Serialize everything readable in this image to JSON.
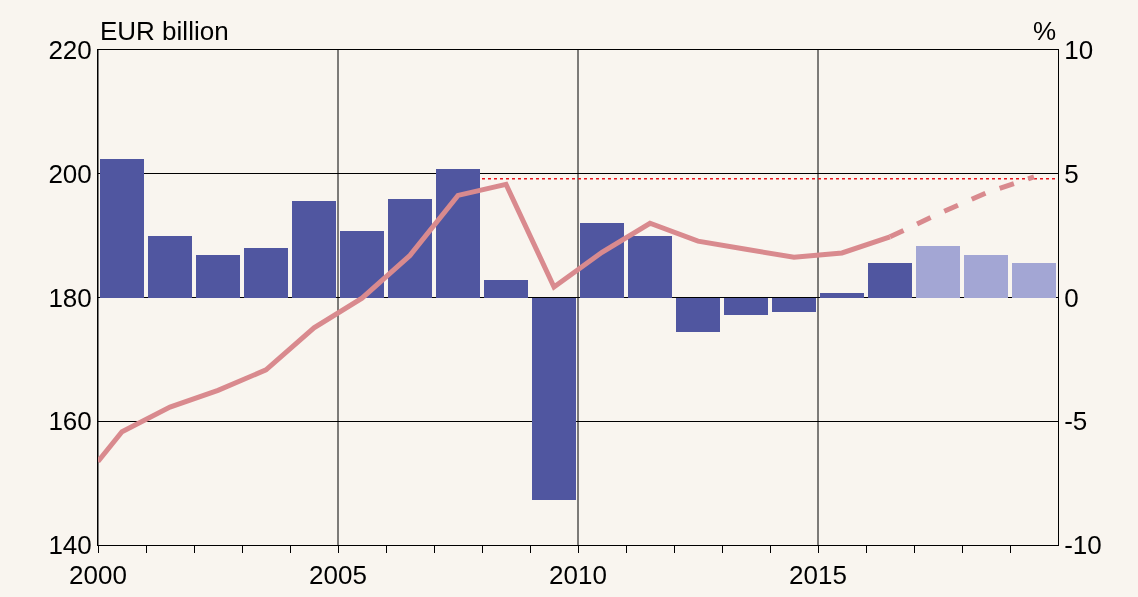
{
  "chart_data": {
    "type": "bar",
    "ylabel": "EUR billion",
    "y2label": "%",
    "xlim": [
      2000,
      2020
    ],
    "xticks": [
      2000,
      {
        "value": 2001,
        "label": null
      },
      {
        "value": 2002,
        "label": null
      },
      {
        "value": 2003,
        "label": null
      },
      {
        "value": 2004,
        "label": null
      },
      2005,
      {
        "value": 2006,
        "label": null
      },
      {
        "value": 2007,
        "label": null
      },
      {
        "value": 2008,
        "label": null
      },
      {
        "value": 2009,
        "label": null
      },
      2010,
      {
        "value": 2011,
        "label": null
      },
      {
        "value": 2012,
        "label": null
      },
      {
        "value": 2013,
        "label": null
      },
      {
        "value": 2014,
        "label": null
      },
      2015,
      {
        "value": 2016,
        "label": null
      },
      {
        "value": 2017,
        "label": null
      },
      {
        "value": 2018,
        "label": null
      },
      {
        "value": 2019,
        "label": null
      }
    ],
    "ylim": [
      140,
      220
    ],
    "yticks": [
      140,
      160,
      180,
      200,
      220
    ],
    "y2lim": [
      -10,
      10
    ],
    "y2ticks": [
      -10,
      -5,
      0,
      5,
      10
    ],
    "grid": true,
    "series": [
      {
        "axis": "y2",
        "color": "#5056a0",
        "x": [
          2000.5,
          2001.5,
          2002.5,
          2003.5,
          2004.5,
          2005.5,
          2006.5,
          2007.5,
          2008.5,
          2009.5,
          2010.5,
          2011.5,
          2012.5,
          2013.5,
          2014.5,
          2015.5,
          2016.5,
          2017.5,
          2018.5,
          2019.5
        ],
        "values": [
          5.6,
          2.5,
          1.7,
          2.0,
          3.9,
          2.7,
          4.0,
          5.2,
          0.7,
          -8.2,
          3.0,
          2.5,
          -1.4,
          -0.7,
          -0.6,
          0.2,
          1.4,
          2.1,
          1.7,
          1.4
        ],
        "colors": [
          null,
          null,
          null,
          null,
          null,
          null,
          null,
          null,
          null,
          null,
          null,
          null,
          null,
          null,
          null,
          null,
          null,
          "#a3a6d4",
          "#a3a6d4",
          "#a3a6d4"
        ]
      },
      {
        "type": "line",
        "axis": "y",
        "color": "#d98a8e",
        "line_style": "solid",
        "x": [
          2000,
          2000.5,
          2001.5,
          2002.5,
          2003.5,
          2004.5,
          2005.5,
          2006.5,
          2007.5,
          2008.5,
          2009.5,
          2010.5,
          2011.5,
          2012.5,
          2013.5,
          2014.5,
          2015.5,
          2016.5
        ],
        "values": [
          153.5,
          158.3,
          162.3,
          165.0,
          168.3,
          175.1,
          179.9,
          186.8,
          196.5,
          198.3,
          181.7,
          187.3,
          192.0,
          189.1,
          187.8,
          186.5,
          187.2,
          189.8
        ]
      },
      {
        "type": "line",
        "axis": "y",
        "color": "#d98a8e",
        "line_style": "dashed",
        "x": [
          2016.5,
          2017.5,
          2018.5,
          2019.5
        ],
        "values": [
          189.8,
          193.5,
          196.9,
          199.5
        ]
      },
      {
        "type": "line",
        "axis": "y2",
        "color": "#e8141c",
        "line_style": "dotted",
        "x": [
          2008,
          2020
        ],
        "values": [
          4.8,
          4.8
        ]
      }
    ]
  }
}
